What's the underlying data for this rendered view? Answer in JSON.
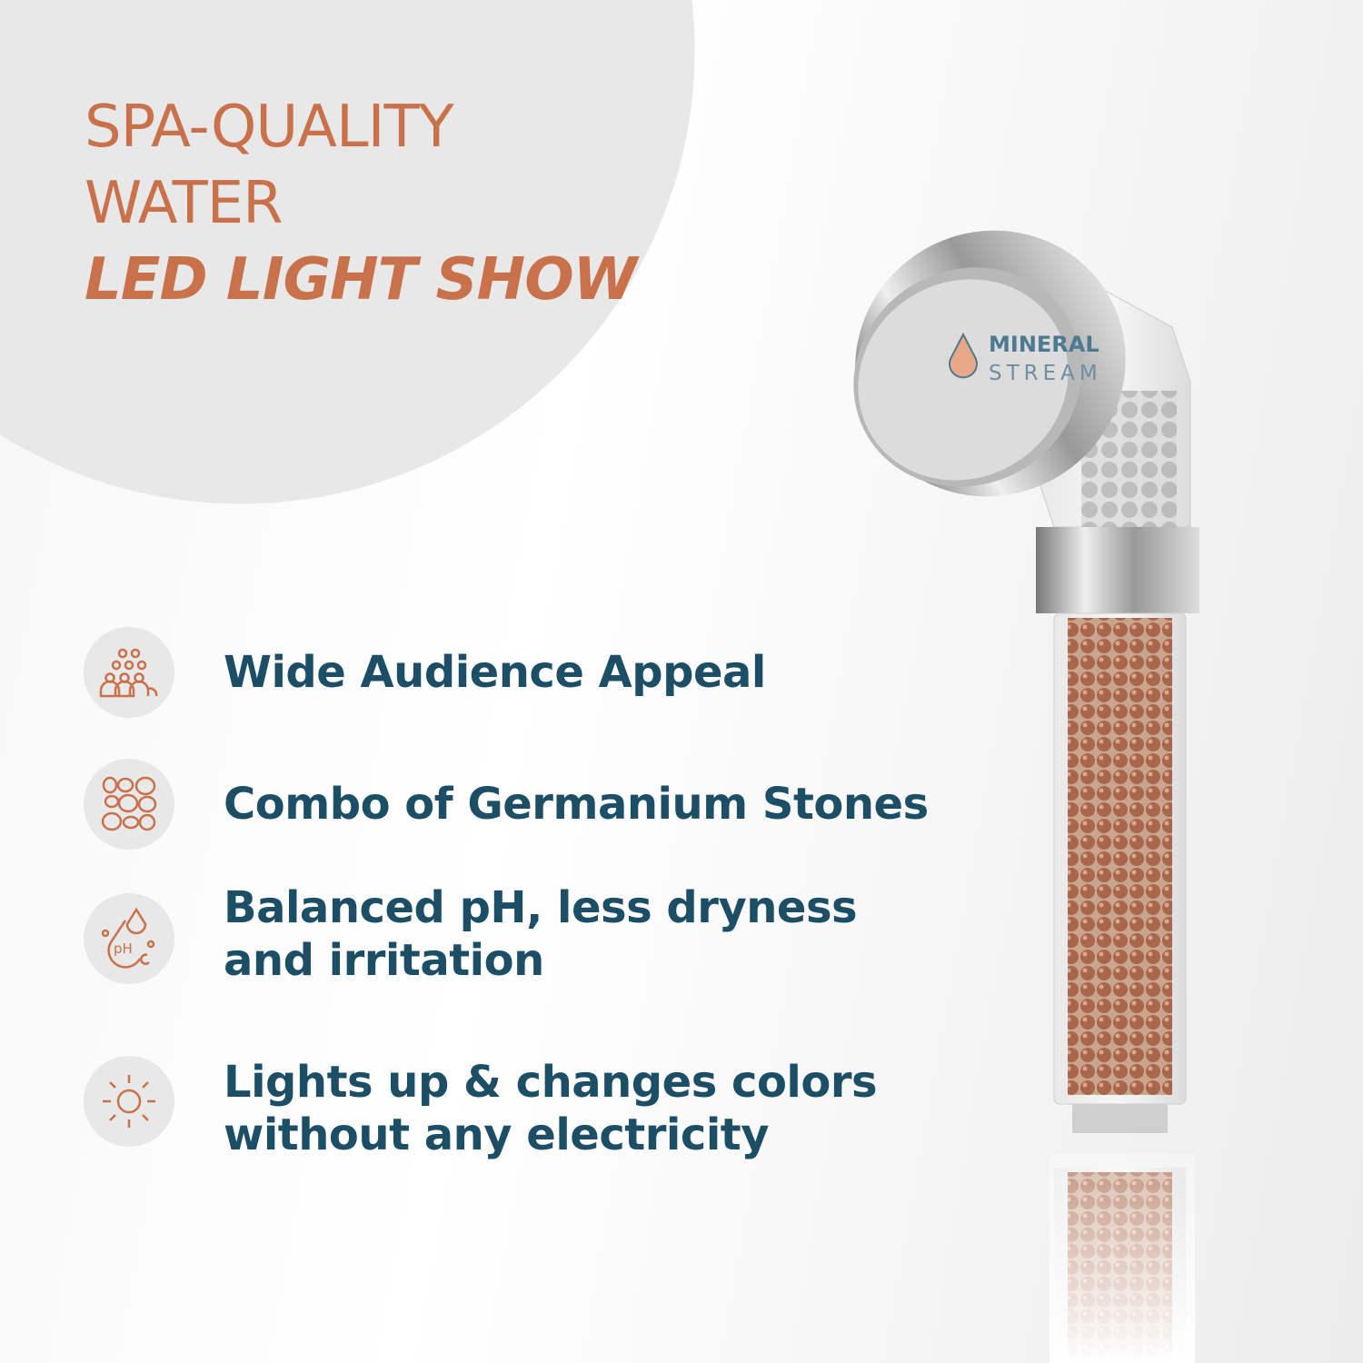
{
  "headline": {
    "line1": "SPA-QUALITY",
    "line2": "WATER",
    "line3": "LED LIGHT SHOW"
  },
  "features": [
    {
      "icon": "crowd-icon",
      "text_lines": [
        "Wide Audience Appeal"
      ]
    },
    {
      "icon": "stones-icon",
      "text_lines": [
        "Combo of Germanium Stones"
      ]
    },
    {
      "icon": "ph-drop-icon",
      "text_lines": [
        "Balanced pH, less dryness",
        "and irritation"
      ]
    },
    {
      "icon": "sun-icon",
      "text_lines": [
        "Lights up & changes colors",
        "without any electricity"
      ]
    }
  ],
  "brand": {
    "line1": "MINERAL",
    "line2": "STREAM"
  },
  "colors": {
    "accent": "#c9714a",
    "text": "#1c4f66",
    "icon_bg": "#e8e8e8"
  }
}
